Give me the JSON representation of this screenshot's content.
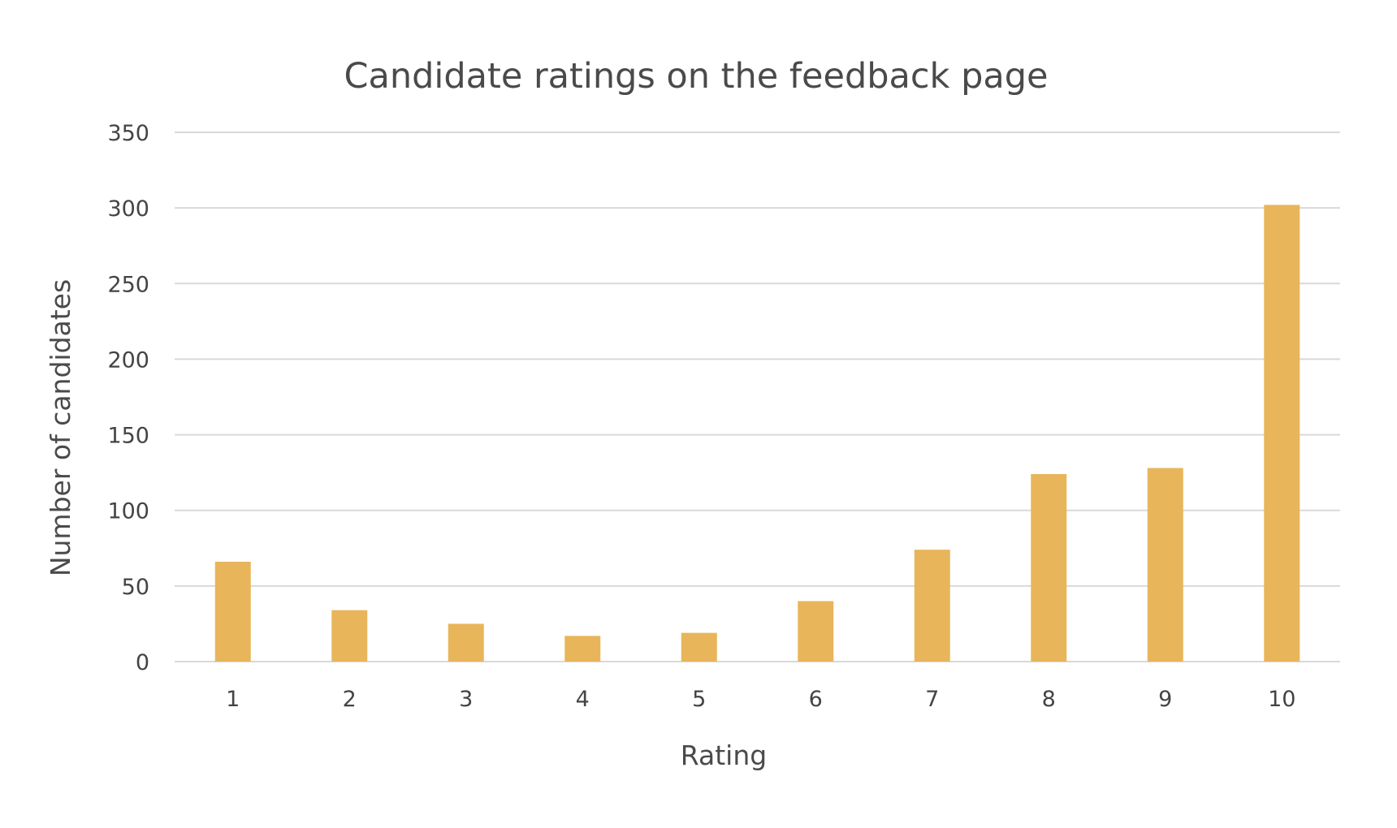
{
  "chart_data": {
    "type": "bar",
    "title": "Candidate ratings on the feedback page",
    "xlabel": "Rating",
    "ylabel": "Number of candidates",
    "categories": [
      "1",
      "2",
      "3",
      "4",
      "5",
      "6",
      "7",
      "8",
      "9",
      "10"
    ],
    "values": [
      66,
      34,
      25,
      17,
      19,
      40,
      74,
      124,
      128,
      302
    ],
    "ylim": [
      0,
      350
    ],
    "yticks": [
      "0",
      "50",
      "100",
      "150",
      "200",
      "250",
      "300",
      "350"
    ],
    "grid": true,
    "legend": "none",
    "bar_color": "#E8B55A"
  }
}
